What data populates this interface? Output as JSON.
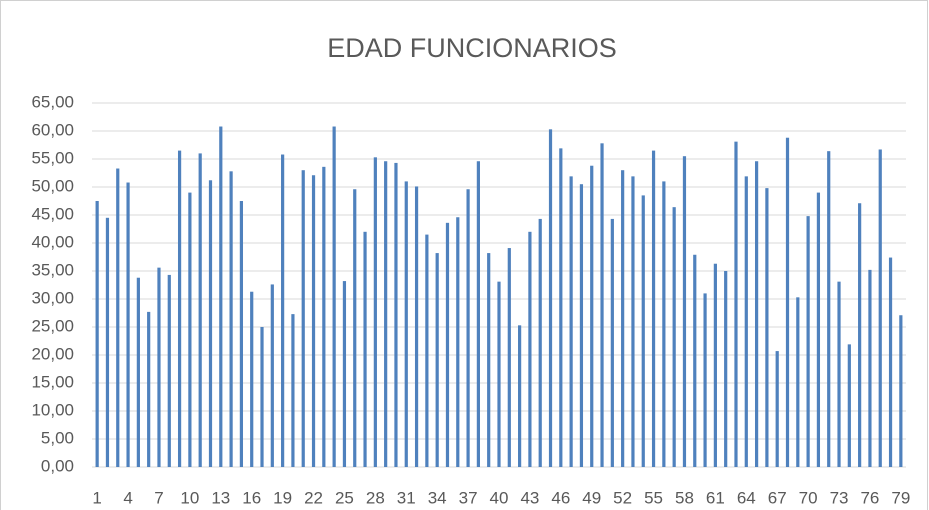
{
  "chart_data": {
    "type": "bar",
    "title": "EDAD FUNCIONARIOS",
    "categories": [
      1,
      null,
      null,
      4,
      null,
      null,
      7,
      null,
      null,
      10,
      null,
      null,
      13,
      null,
      null,
      16,
      null,
      null,
      19,
      null,
      null,
      22,
      null,
      null,
      25,
      null,
      null,
      28,
      null,
      null,
      31,
      null,
      null,
      34,
      null,
      null,
      37,
      null,
      null,
      40,
      null,
      null,
      43,
      null,
      null,
      46,
      null,
      null,
      49,
      null,
      null,
      52,
      null,
      null,
      55,
      null,
      null,
      58,
      null,
      null,
      61,
      null,
      null,
      64,
      null,
      null,
      67,
      null,
      null,
      70,
      null,
      null,
      73,
      null,
      null,
      76,
      null,
      null,
      79
    ],
    "values": [
      47.5,
      44.5,
      53.3,
      50.8,
      33.8,
      27.7,
      35.6,
      34.3,
      56.5,
      49,
      56,
      51.2,
      60.8,
      52.8,
      47.5,
      31.3,
      25,
      32.6,
      55.8,
      27.3,
      53,
      52.1,
      53.6,
      60.8,
      33.2,
      49.6,
      42,
      55.3,
      54.6,
      54.3,
      51,
      50.1,
      41.5,
      38.2,
      43.6,
      44.6,
      49.6,
      54.6,
      38.2,
      33.1,
      39.1,
      25.3,
      42,
      44.3,
      60.3,
      56.9,
      51.9,
      50.5,
      53.8,
      57.8,
      44.3,
      53,
      51.9,
      48.5,
      56.5,
      51,
      46.4,
      55.5,
      37.9,
      31,
      36.3,
      35,
      58.1,
      51.9,
      54.6,
      49.8,
      20.7,
      58.8,
      30.3,
      44.8,
      49,
      56.4,
      33.1,
      21.9,
      47.1,
      35.2,
      56.7,
      37.4,
      27.1
    ],
    "color": "#4f81bd",
    "ylim": [
      0,
      65
    ],
    "yticks": [
      {
        "value": 0,
        "label": "0,00"
      },
      {
        "value": 5,
        "label": "5,00"
      },
      {
        "value": 10,
        "label": "10,00"
      },
      {
        "value": 15,
        "label": "15,00"
      },
      {
        "value": 20,
        "label": "20,00"
      },
      {
        "value": 25,
        "label": "25,00"
      },
      {
        "value": 30,
        "label": "30,00"
      },
      {
        "value": 35,
        "label": "35,00"
      },
      {
        "value": 40,
        "label": "40,00"
      },
      {
        "value": 45,
        "label": "45,00"
      },
      {
        "value": 50,
        "label": "50,00"
      },
      {
        "value": 55,
        "label": "55,00"
      },
      {
        "value": 60,
        "label": "60,00"
      },
      {
        "value": 65,
        "label": "65,00"
      }
    ],
    "grid": true
  }
}
